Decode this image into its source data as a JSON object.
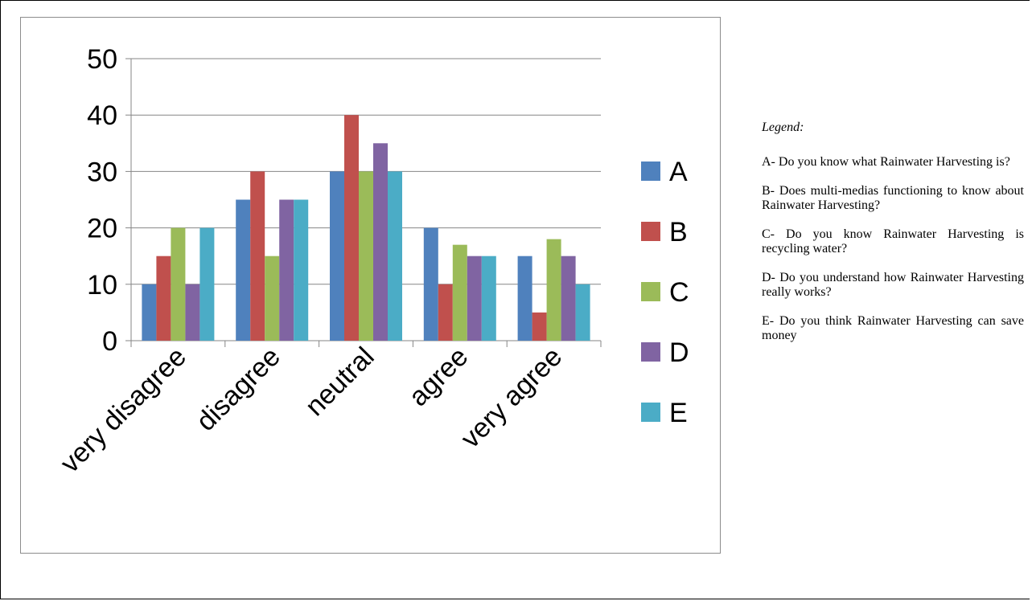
{
  "chart_data": {
    "type": "bar",
    "categories": [
      "very disagree",
      "disagree",
      "neutral",
      "agree",
      "very agree"
    ],
    "series": [
      {
        "name": "A",
        "values": [
          10,
          25,
          30,
          20,
          15
        ],
        "color": "#4f81bd"
      },
      {
        "name": "B",
        "values": [
          15,
          30,
          40,
          10,
          5
        ],
        "color": "#c0504d"
      },
      {
        "name": "C",
        "values": [
          20,
          15,
          30,
          17,
          18
        ],
        "color": "#9bbb59"
      },
      {
        "name": "D",
        "values": [
          10,
          25,
          35,
          15,
          15
        ],
        "color": "#8064a2"
      },
      {
        "name": "E",
        "values": [
          20,
          25,
          30,
          15,
          10
        ],
        "color": "#4bacc6"
      }
    ],
    "ylim": [
      0,
      50
    ],
    "yticks": [
      0,
      10,
      20,
      30,
      40,
      50
    ],
    "grid": true,
    "legend_position": "right",
    "title": "",
    "xlabel": "",
    "ylabel": ""
  },
  "legend_notes": {
    "heading": "Legend:",
    "items": [
      "A- Do you know what Rainwater Harvesting is?",
      "B- Does multi-medias functioning to know about Rainwater Harvesting?",
      "C- Do you know Rainwater Harvesting is recycling water?",
      "D- Do you understand how Rainwater Harvesting really works?",
      "E- Do you think Rainwater Harvesting can save money"
    ]
  }
}
